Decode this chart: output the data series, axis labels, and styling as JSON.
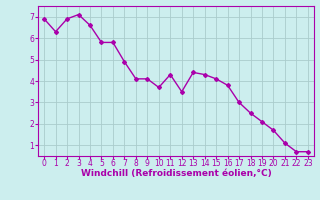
{
  "x": [
    0,
    1,
    2,
    3,
    4,
    5,
    6,
    7,
    8,
    9,
    10,
    11,
    12,
    13,
    14,
    15,
    16,
    17,
    18,
    19,
    20,
    21,
    22,
    23
  ],
  "y": [
    6.9,
    6.3,
    6.9,
    7.1,
    6.6,
    5.8,
    5.8,
    4.9,
    4.1,
    4.1,
    3.7,
    4.3,
    3.5,
    4.4,
    4.3,
    4.1,
    3.8,
    3.0,
    2.5,
    2.1,
    1.7,
    1.1,
    0.7,
    0.7
  ],
  "line_color": "#aa00aa",
  "marker": "D",
  "marker_size": 2.0,
  "line_width": 1.0,
  "bg_color": "#cceeee",
  "grid_color": "#aacccc",
  "xlabel": "Windchill (Refroidissement éolien,°C)",
  "xlabel_color": "#aa00aa",
  "xlabel_fontsize": 6.5,
  "tick_color": "#aa00aa",
  "tick_fontsize": 5.5,
  "ylim": [
    0.5,
    7.5
  ],
  "xlim": [
    -0.5,
    23.5
  ],
  "yticks": [
    1,
    2,
    3,
    4,
    5,
    6,
    7
  ],
  "xticks": [
    0,
    1,
    2,
    3,
    4,
    5,
    6,
    7,
    8,
    9,
    10,
    11,
    12,
    13,
    14,
    15,
    16,
    17,
    18,
    19,
    20,
    21,
    22,
    23
  ]
}
